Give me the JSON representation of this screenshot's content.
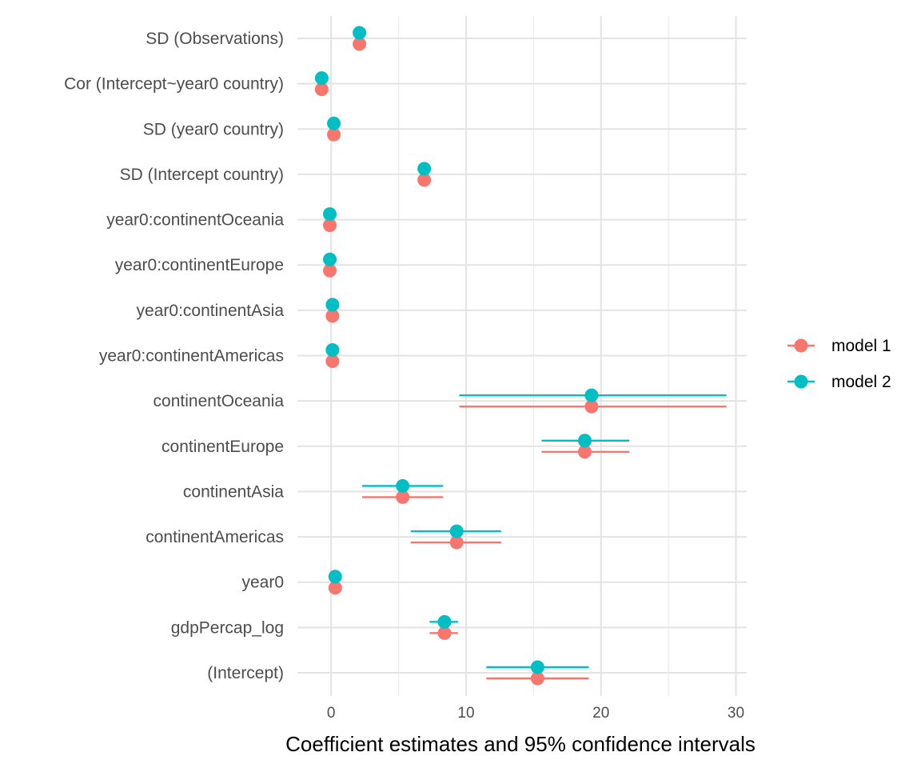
{
  "chart_data": {
    "type": "scatter",
    "subtype": "coefficient-plot",
    "xlabel": "Coefficient estimates and 95% confidence intervals",
    "xlim": [
      -2.5,
      30.8
    ],
    "xticks": [
      0,
      10,
      20,
      30
    ],
    "grid": true,
    "legend_position": "right",
    "terms": [
      "(Intercept)",
      "gdpPercap_log",
      "year0",
      "continentAmericas",
      "continentAsia",
      "continentEurope",
      "continentOceania",
      "year0:continentAmericas",
      "year0:continentAsia",
      "year0:continentEurope",
      "year0:continentOceania",
      "SD (Intercept country)",
      "SD (year0 country)",
      "Cor (Intercept~year0 country)",
      "SD (Observations)"
    ],
    "series": [
      {
        "name": "model 1",
        "color": "#F8766D",
        "estimate": [
          15.3,
          8.4,
          0.3,
          9.3,
          5.3,
          18.8,
          19.3,
          0.1,
          0.1,
          -0.1,
          -0.1,
          6.9,
          0.2,
          -0.7,
          2.1
        ],
        "ci_low": [
          11.5,
          7.3,
          null,
          5.9,
          2.3,
          15.6,
          9.5,
          null,
          null,
          null,
          null,
          null,
          null,
          null,
          null
        ],
        "ci_high": [
          19.1,
          9.4,
          null,
          12.6,
          8.3,
          22.1,
          29.3,
          null,
          null,
          null,
          null,
          null,
          null,
          null,
          null
        ]
      },
      {
        "name": "model 2",
        "color": "#00BFC4",
        "estimate": [
          15.3,
          8.4,
          0.3,
          9.3,
          5.3,
          18.8,
          19.3,
          0.1,
          0.1,
          -0.1,
          -0.1,
          6.9,
          0.2,
          -0.7,
          2.1
        ],
        "ci_low": [
          11.5,
          7.3,
          null,
          5.9,
          2.3,
          15.6,
          9.5,
          null,
          null,
          null,
          null,
          null,
          null,
          null,
          null
        ],
        "ci_high": [
          19.1,
          9.4,
          null,
          12.6,
          8.3,
          22.1,
          29.3,
          null,
          null,
          null,
          null,
          null,
          null,
          null,
          null
        ]
      }
    ]
  }
}
